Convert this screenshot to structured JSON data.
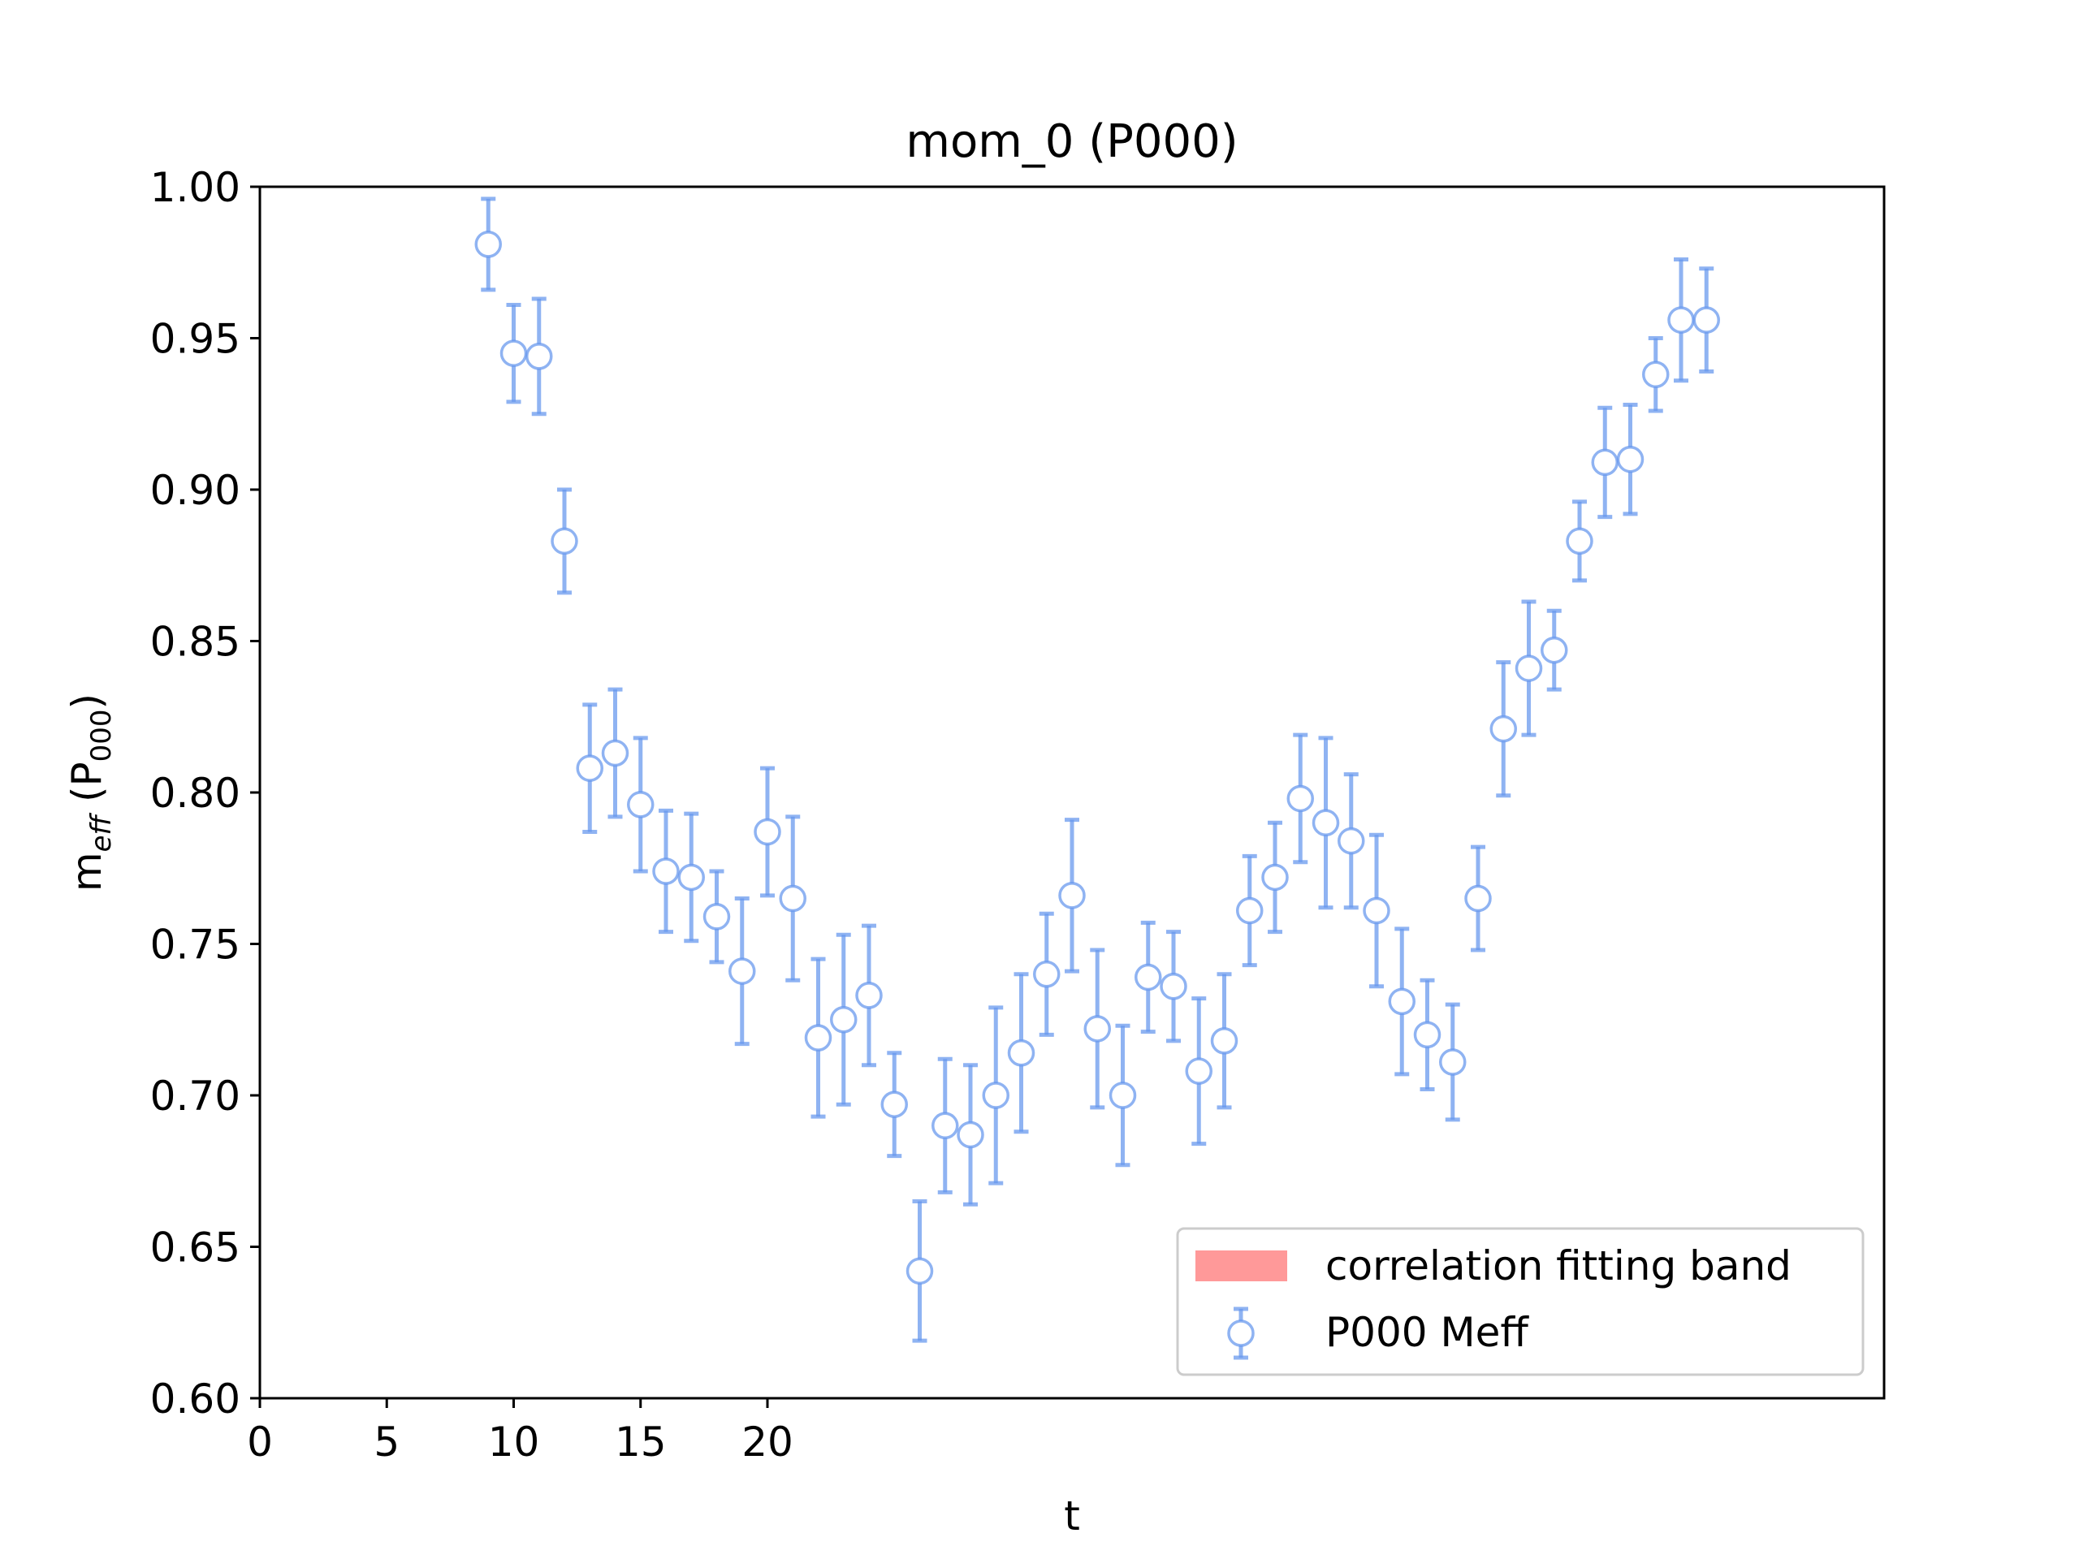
{
  "chart_data": {
    "type": "scatter",
    "title": "mom_0  (P000)",
    "xlabel": "t",
    "ylabel": {
      "main": "m",
      "sub": "eff",
      "paren_open": " (P",
      "paren_sub": "000",
      "paren_close": ")"
    },
    "xlim": [
      0,
      64
    ],
    "ylim": [
      0.6,
      1.0
    ],
    "xticks": [
      0,
      5,
      10,
      15,
      20
    ],
    "xtick_labels": [
      "0",
      "5",
      "10",
      "15",
      "20"
    ],
    "yticks": [
      0.6,
      0.65,
      0.7,
      0.75,
      0.8,
      0.85,
      0.9,
      0.95,
      1.0
    ],
    "ytick_labels": [
      "0.60",
      "0.65",
      "0.70",
      "0.75",
      "0.80",
      "0.85",
      "0.90",
      "0.95",
      "1.00"
    ],
    "grid": false,
    "legend_position": "lower right",
    "legend": [
      {
        "label": "correlation fitting band",
        "kind": "patch",
        "color": "#ff9999"
      },
      {
        "label": "P000 Meff",
        "kind": "errorbar",
        "color": "#6495ed"
      }
    ],
    "series": [
      {
        "name": "P000 Meff",
        "color": "#6495ed",
        "marker": "open-circle",
        "x": [
          9,
          10,
          11,
          12,
          13,
          14,
          15,
          16,
          17,
          18,
          19,
          20,
          21,
          22,
          23,
          24,
          25,
          26,
          27,
          28,
          29,
          30,
          31,
          32,
          33,
          34,
          35,
          36,
          37,
          38,
          39,
          40,
          41,
          42,
          43,
          44,
          45,
          46,
          47,
          48,
          49,
          50,
          51,
          52,
          53,
          54,
          55,
          56,
          57
        ],
        "y": [
          0.981,
          0.945,
          0.944,
          0.883,
          0.808,
          0.813,
          0.796,
          0.774,
          0.772,
          0.759,
          0.741,
          0.787,
          0.765,
          0.719,
          0.725,
          0.733,
          0.697,
          0.642,
          0.69,
          0.687,
          0.7,
          0.714,
          0.74,
          0.766,
          0.722,
          0.7,
          0.739,
          0.736,
          0.708,
          0.718,
          0.761,
          0.772,
          0.798,
          0.79,
          0.784,
          0.761,
          0.731,
          0.72,
          0.711,
          0.765,
          0.821,
          0.841,
          0.847,
          0.883,
          0.909,
          0.91,
          0.938,
          0.956,
          0.956
        ],
        "yerr": [
          0.015,
          0.016,
          0.019,
          0.017,
          0.021,
          0.021,
          0.022,
          0.02,
          0.021,
          0.015,
          0.024,
          0.021,
          0.027,
          0.026,
          0.028,
          0.023,
          0.017,
          0.023,
          0.022,
          0.023,
          0.029,
          0.026,
          0.02,
          0.025,
          0.026,
          0.023,
          0.018,
          0.018,
          0.024,
          0.022,
          0.018,
          0.018,
          0.021,
          0.028,
          0.022,
          0.025,
          0.024,
          0.018,
          0.019,
          0.017,
          0.022,
          0.022,
          0.013,
          0.013,
          0.018,
          0.018,
          0.012,
          0.02,
          0.017
        ]
      }
    ]
  }
}
